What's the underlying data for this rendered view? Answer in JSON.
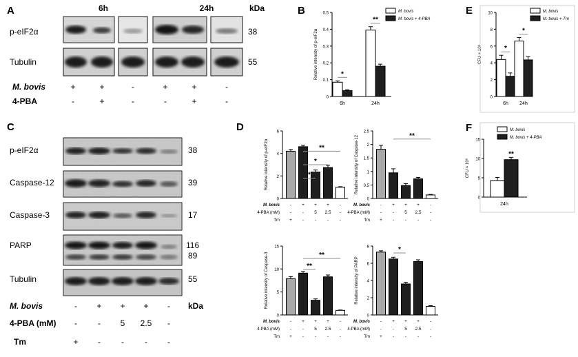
{
  "figure": {
    "panel_letters": [
      "A",
      "B",
      "C",
      "D",
      "E",
      "F"
    ],
    "colors": {
      "open_bar": "#ffffff",
      "black_bar": "#1f1f1f",
      "gray_bar": "#a9a9a9",
      "sig_line": "#8c8c8c",
      "blot_bg": "#c4c4c4",
      "band": "#1e1e1e"
    }
  },
  "panel_a": {
    "time_6h": "6h",
    "time_24h": "24h",
    "kda_header": "kDa",
    "rows": [
      {
        "label": "p-eIF2α",
        "kda": "38"
      },
      {
        "label": "Tubulin",
        "kda": "55"
      }
    ],
    "conditions": [
      {
        "label": "M. bovis",
        "marks": [
          "+",
          "+",
          "-",
          "+",
          "+",
          "-"
        ]
      },
      {
        "label": "4-PBA",
        "marks": [
          "-",
          "+",
          "-",
          "-",
          "+",
          "-"
        ]
      }
    ]
  },
  "panel_c": {
    "rows": [
      {
        "label": "p-eIF2α",
        "kda": "38"
      },
      {
        "label": "Caspase-12",
        "kda": "39"
      },
      {
        "label": "Caspase-3",
        "kda": "17"
      },
      {
        "label": "PARP",
        "kda": "116",
        "kda2": "89"
      },
      {
        "label": "Tubulin",
        "kda": "55"
      }
    ],
    "kda_footer": "kDa",
    "conditions": [
      {
        "label": "M. bovis",
        "marks": [
          "-",
          "+",
          "+",
          "+",
          "-"
        ]
      },
      {
        "label": "4-PBA (mM)",
        "marks": [
          "-",
          "-",
          "5",
          "2.5",
          "-"
        ]
      },
      {
        "label": "Tm",
        "marks": [
          "+",
          "-",
          "-",
          "-",
          "-"
        ]
      }
    ]
  },
  "panel_d_conditions": [
    {
      "label": "M. bovis",
      "marks": [
        "-",
        "+",
        "+",
        "+",
        "-"
      ]
    },
    {
      "label": "4-PBA (mM)",
      "marks": [
        "-",
        "-",
        "5",
        "2.5",
        "-"
      ]
    },
    {
      "label": "Tm",
      "marks": [
        "+",
        "-",
        "-",
        "-",
        "-"
      ]
    }
  ],
  "chart_data": [
    {
      "panel": "B",
      "type": "bar",
      "ylabel": "Relative intensity of p-eIF2α",
      "categories": [
        "6h",
        "24h"
      ],
      "ylim": [
        0,
        0.5
      ],
      "yticks": [
        0.0,
        0.1,
        0.2,
        0.3,
        0.4,
        0.5
      ],
      "legend": "top-right",
      "series": [
        {
          "name": "M. bovis",
          "fill": "open",
          "values": [
            0.085,
            0.395
          ],
          "errors": [
            0.008,
            0.02
          ]
        },
        {
          "name": "M. bovis + 4-PBA",
          "fill": "black",
          "values": [
            0.035,
            0.18
          ],
          "errors": [
            0.005,
            0.012
          ]
        }
      ],
      "significance": [
        "*",
        "**"
      ]
    },
    {
      "panel": "E",
      "type": "bar",
      "ylabel": "CFU × 10⁸",
      "categories": [
        "6h",
        "24h"
      ],
      "ylim": [
        0,
        10
      ],
      "yticks": [
        0,
        2,
        4,
        6,
        8,
        10
      ],
      "legend": "top-right",
      "series": [
        {
          "name": "M. bovis",
          "fill": "open",
          "values": [
            4.4,
            6.6
          ],
          "errors": [
            0.5,
            0.4
          ]
        },
        {
          "name": "M. bovis + Tm",
          "fill": "black",
          "values": [
            2.4,
            4.35
          ],
          "errors": [
            0.4,
            0.4
          ]
        }
      ],
      "significance": [
        "*",
        "*"
      ]
    },
    {
      "panel": "F",
      "type": "bar",
      "ylabel": "CFU × 10⁸",
      "categories": [
        "24h"
      ],
      "ylim": [
        0,
        15
      ],
      "yticks": [
        0,
        5,
        10,
        15
      ],
      "legend": "top-right",
      "series": [
        {
          "name": "M. bovis",
          "fill": "open",
          "values": [
            4.3
          ],
          "errors": [
            0.8
          ]
        },
        {
          "name": "M. bovis + 4-PBA",
          "fill": "black",
          "values": [
            9.7
          ],
          "errors": [
            0.6
          ]
        }
      ],
      "significance": [
        "**"
      ]
    },
    {
      "panel": "D1",
      "type": "bar",
      "ylabel": "Relative intensity of p-eIF2α",
      "ylim": [
        0,
        6
      ],
      "yticks": [
        0,
        2,
        4,
        6
      ],
      "values": [
        4.2,
        4.6,
        2.35,
        2.75,
        1.0
      ],
      "errors": [
        0.15,
        0.12,
        0.18,
        0.2,
        0.05
      ],
      "fills": [
        "gray",
        "black",
        "black",
        "black",
        "open"
      ],
      "significance": [
        "*",
        "*",
        "**"
      ]
    },
    {
      "panel": "D2",
      "type": "bar",
      "ylabel": "Relative intensity of Caspase-12",
      "ylim": [
        0,
        2.5
      ],
      "yticks": [
        0.0,
        0.5,
        1.0,
        1.5,
        2.0,
        2.5
      ],
      "values": [
        1.82,
        0.95,
        0.48,
        0.73,
        0.13
      ],
      "errors": [
        0.15,
        0.15,
        0.07,
        0.05,
        0.02
      ],
      "fills": [
        "gray",
        "black",
        "black",
        "black",
        "open"
      ],
      "significance": [
        "**"
      ]
    },
    {
      "panel": "D3",
      "type": "bar",
      "ylabel": "Relative intensity of Caspase-3",
      "ylim": [
        0,
        15
      ],
      "yticks": [
        0,
        5,
        10,
        15
      ],
      "values": [
        7.9,
        9.1,
        3.2,
        8.3,
        1.0
      ],
      "errors": [
        0.45,
        0.35,
        0.3,
        0.4,
        0.08
      ],
      "fills": [
        "gray",
        "black",
        "black",
        "black",
        "open"
      ],
      "significance": [
        "**",
        "**"
      ]
    },
    {
      "panel": "D4",
      "type": "bar",
      "ylabel": "Relative intensity of PARP",
      "ylim": [
        0,
        8
      ],
      "yticks": [
        0,
        2,
        4,
        6,
        8
      ],
      "values": [
        7.3,
        6.5,
        3.6,
        6.2,
        1.0
      ],
      "errors": [
        0.15,
        0.2,
        0.2,
        0.2,
        0.08
      ],
      "fills": [
        "gray",
        "black",
        "black",
        "black",
        "open"
      ],
      "significance": [
        "*"
      ]
    }
  ]
}
